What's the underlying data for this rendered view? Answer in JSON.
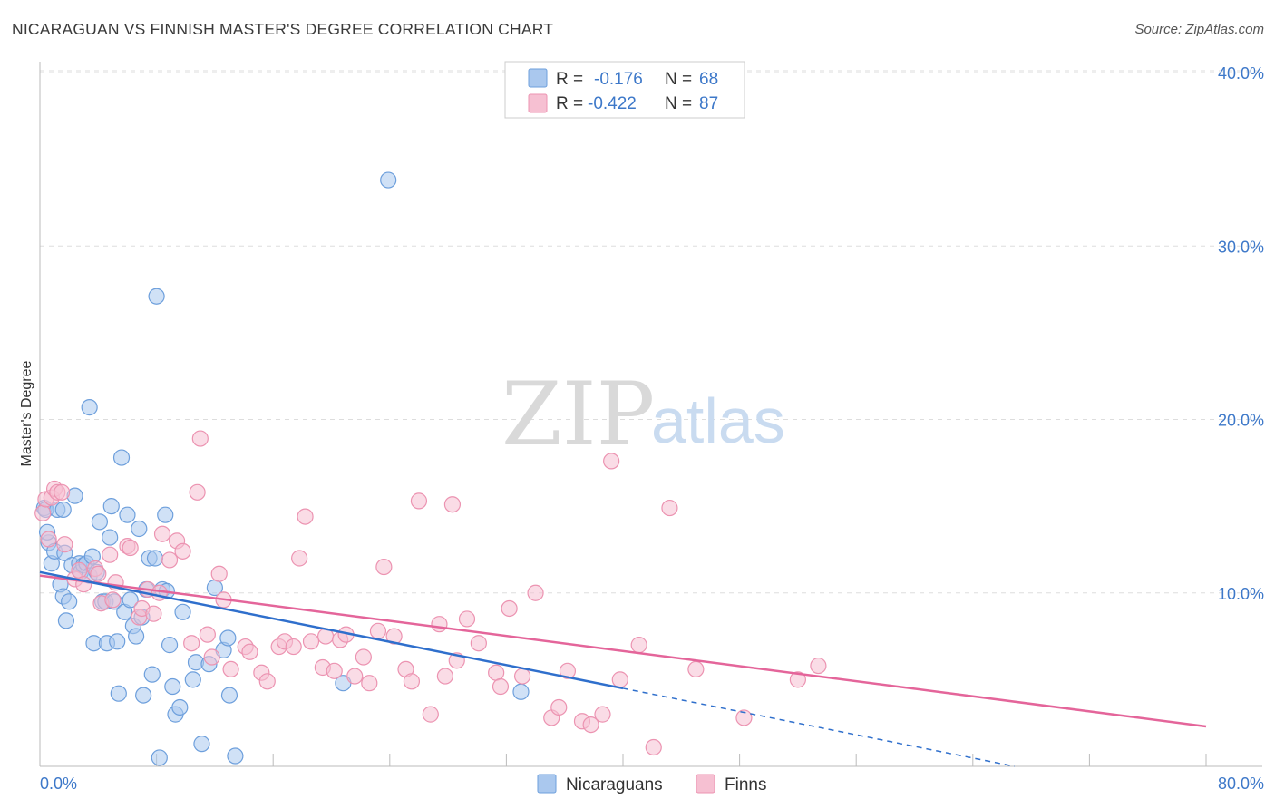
{
  "title": "NICARAGUAN VS FINNISH MASTER'S DEGREE CORRELATION CHART",
  "source": "Source: ZipAtlas.com",
  "watermark": {
    "zip": "ZIP",
    "atlas": "atlas"
  },
  "colors": {
    "blue_fill": "#aac8ee",
    "blue_stroke": "#6d9fdc",
    "blue_line": "#2f6fcc",
    "pink_fill": "#f6c0d2",
    "pink_stroke": "#ec93b1",
    "pink_line": "#e4659a",
    "tick_label": "#3d78c9",
    "grid": "#dddddd"
  },
  "legend": {
    "rows": [
      {
        "r_label": "R =",
        "r_value": "-0.176",
        "n_label": "N =",
        "n_value": "68"
      },
      {
        "r_label": "R =",
        "r_value": "-0.422",
        "n_label": "N =",
        "n_value": "87"
      }
    ]
  },
  "bottom_legend": [
    "Nicaraguans",
    "Finns"
  ],
  "chart_data": {
    "type": "scatter",
    "title": "NICARAGUAN VS FINNISH MASTER'S DEGREE CORRELATION CHART",
    "xlabel": "",
    "ylabel": "Master's Degree",
    "xlim": [
      0,
      80
    ],
    "ylim": [
      0,
      40
    ],
    "x_tick_labels": [
      "0.0%",
      "80.0%"
    ],
    "y_ticks": [
      10,
      20,
      30,
      40
    ],
    "y_tick_labels": [
      "10.0%",
      "20.0%",
      "30.0%",
      "40.0%"
    ],
    "series": [
      {
        "name": "Nicaraguans",
        "r": -0.176,
        "n": 68,
        "trend": {
          "x0": 0,
          "y0": 11.2,
          "x1": 40,
          "y1": 4.5,
          "dashed_to_x": 80
        },
        "points": [
          [
            0.3,
            14.9
          ],
          [
            0.4,
            14.8
          ],
          [
            0.6,
            12.9
          ],
          [
            0.8,
            11.7
          ],
          [
            1.0,
            12.4
          ],
          [
            1.2,
            14.8
          ],
          [
            1.4,
            10.5
          ],
          [
            1.6,
            9.8
          ],
          [
            1.6,
            14.8
          ],
          [
            1.7,
            12.3
          ],
          [
            1.8,
            8.4
          ],
          [
            2.0,
            9.5
          ],
          [
            2.2,
            11.6
          ],
          [
            2.4,
            15.6
          ],
          [
            2.7,
            11.7
          ],
          [
            2.8,
            11.2
          ],
          [
            3.0,
            11.6
          ],
          [
            3.2,
            11.7
          ],
          [
            3.4,
            11.0
          ],
          [
            3.4,
            20.7
          ],
          [
            3.6,
            12.1
          ],
          [
            3.7,
            7.1
          ],
          [
            3.9,
            11.2
          ],
          [
            4.1,
            14.1
          ],
          [
            4.3,
            9.5
          ],
          [
            4.5,
            9.5
          ],
          [
            4.6,
            7.1
          ],
          [
            4.8,
            13.2
          ],
          [
            4.9,
            15.0
          ],
          [
            5.1,
            9.5
          ],
          [
            5.3,
            7.2
          ],
          [
            5.4,
            4.2
          ],
          [
            5.6,
            17.8
          ],
          [
            5.8,
            8.9
          ],
          [
            6.0,
            14.5
          ],
          [
            6.2,
            9.6
          ],
          [
            6.4,
            8.1
          ],
          [
            6.6,
            7.5
          ],
          [
            6.8,
            13.7
          ],
          [
            7.0,
            8.6
          ],
          [
            7.1,
            4.1
          ],
          [
            7.3,
            10.2
          ],
          [
            7.5,
            12.0
          ],
          [
            7.7,
            5.3
          ],
          [
            7.9,
            12.0
          ],
          [
            8.0,
            27.1
          ],
          [
            8.2,
            0.5
          ],
          [
            8.4,
            10.2
          ],
          [
            8.6,
            14.5
          ],
          [
            8.7,
            10.1
          ],
          [
            8.9,
            7.0
          ],
          [
            9.1,
            4.6
          ],
          [
            9.3,
            3.0
          ],
          [
            9.6,
            3.4
          ],
          [
            9.8,
            8.9
          ],
          [
            10.5,
            5.0
          ],
          [
            10.7,
            6.0
          ],
          [
            11.1,
            1.3
          ],
          [
            11.6,
            5.9
          ],
          [
            12.0,
            10.3
          ],
          [
            12.6,
            6.7
          ],
          [
            12.9,
            7.4
          ],
          [
            13.0,
            4.1
          ],
          [
            13.4,
            0.6
          ],
          [
            20.8,
            4.8
          ],
          [
            23.9,
            33.8
          ],
          [
            33.0,
            4.3
          ],
          [
            0.5,
            13.5
          ]
        ]
      },
      {
        "name": "Finns",
        "r": -0.422,
        "n": 87,
        "trend": {
          "x0": 0,
          "y0": 11.0,
          "x1": 80,
          "y1": 2.3
        },
        "points": [
          [
            0.2,
            14.6
          ],
          [
            0.4,
            15.4
          ],
          [
            0.6,
            13.1
          ],
          [
            0.8,
            15.5
          ],
          [
            1.0,
            16.0
          ],
          [
            1.2,
            15.8
          ],
          [
            1.5,
            15.8
          ],
          [
            1.7,
            12.8
          ],
          [
            2.4,
            10.8
          ],
          [
            2.7,
            11.3
          ],
          [
            3.0,
            10.5
          ],
          [
            3.8,
            11.4
          ],
          [
            4.0,
            11.1
          ],
          [
            4.2,
            9.4
          ],
          [
            4.8,
            12.2
          ],
          [
            5.0,
            9.6
          ],
          [
            5.2,
            10.6
          ],
          [
            6.0,
            12.7
          ],
          [
            6.2,
            12.6
          ],
          [
            6.8,
            8.6
          ],
          [
            7.0,
            9.1
          ],
          [
            7.4,
            10.2
          ],
          [
            7.8,
            8.8
          ],
          [
            8.2,
            10.0
          ],
          [
            8.4,
            13.4
          ],
          [
            8.9,
            11.9
          ],
          [
            9.4,
            13.0
          ],
          [
            9.8,
            12.4
          ],
          [
            10.4,
            7.1
          ],
          [
            10.8,
            15.8
          ],
          [
            11.0,
            18.9
          ],
          [
            11.5,
            7.6
          ],
          [
            11.8,
            6.3
          ],
          [
            12.3,
            11.1
          ],
          [
            12.6,
            9.6
          ],
          [
            13.1,
            5.6
          ],
          [
            14.1,
            6.9
          ],
          [
            14.4,
            6.6
          ],
          [
            15.2,
            5.4
          ],
          [
            15.6,
            4.9
          ],
          [
            16.4,
            6.9
          ],
          [
            16.8,
            7.2
          ],
          [
            17.4,
            6.9
          ],
          [
            17.8,
            12.0
          ],
          [
            18.2,
            14.4
          ],
          [
            18.6,
            7.2
          ],
          [
            19.4,
            5.7
          ],
          [
            19.6,
            7.5
          ],
          [
            20.2,
            5.5
          ],
          [
            20.6,
            7.3
          ],
          [
            21.0,
            7.6
          ],
          [
            21.6,
            5.2
          ],
          [
            22.2,
            6.3
          ],
          [
            22.6,
            4.8
          ],
          [
            23.2,
            7.8
          ],
          [
            23.6,
            11.5
          ],
          [
            24.3,
            7.5
          ],
          [
            25.1,
            5.6
          ],
          [
            25.5,
            4.9
          ],
          [
            26.0,
            15.3
          ],
          [
            26.8,
            3.0
          ],
          [
            27.4,
            8.2
          ],
          [
            27.8,
            5.2
          ],
          [
            28.3,
            15.1
          ],
          [
            28.6,
            6.1
          ],
          [
            29.3,
            8.5
          ],
          [
            30.1,
            7.1
          ],
          [
            31.3,
            5.4
          ],
          [
            31.6,
            4.6
          ],
          [
            32.2,
            9.1
          ],
          [
            33.1,
            5.2
          ],
          [
            34.0,
            10.0
          ],
          [
            35.1,
            2.8
          ],
          [
            35.6,
            3.4
          ],
          [
            36.2,
            5.5
          ],
          [
            37.2,
            2.6
          ],
          [
            37.8,
            2.4
          ],
          [
            38.6,
            3.0
          ],
          [
            39.2,
            17.6
          ],
          [
            39.8,
            5.0
          ],
          [
            41.1,
            7.0
          ],
          [
            42.1,
            1.1
          ],
          [
            43.2,
            14.9
          ],
          [
            45.0,
            5.6
          ],
          [
            48.3,
            2.8
          ],
          [
            52.0,
            5.0
          ],
          [
            53.4,
            5.8
          ]
        ]
      }
    ]
  }
}
